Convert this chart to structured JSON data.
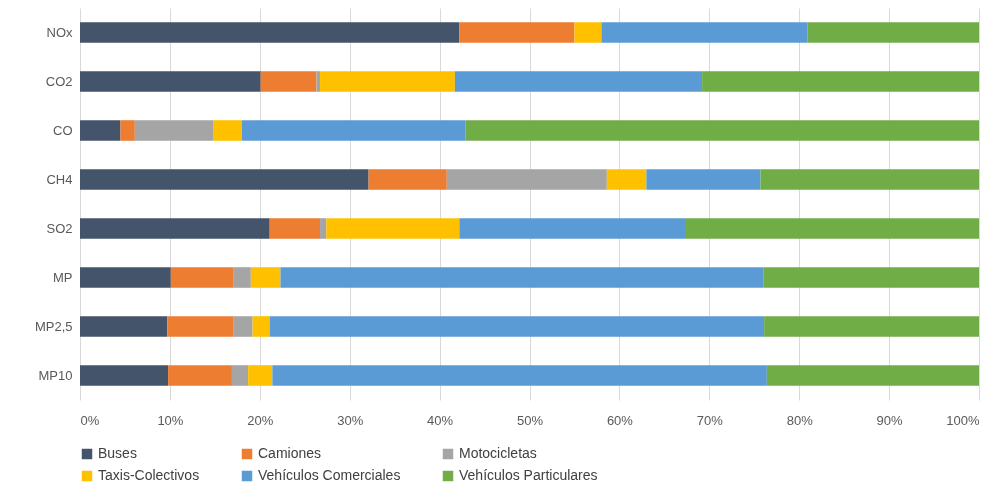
{
  "chart_data": {
    "type": "bar",
    "orientation": "horizontal",
    "stacked": true,
    "categories": [
      "NOx",
      "CO2",
      "CO",
      "CH4",
      "SO2",
      "MP",
      "MP2,5",
      "MP10"
    ],
    "series": [
      {
        "name": "Buses",
        "color": "#44546a",
        "values": [
          42.2,
          20.1,
          4.5,
          32.1,
          21.1,
          10.1,
          9.7,
          9.8
        ]
      },
      {
        "name": "Camiones",
        "color": "#ed7d31",
        "values": [
          12.8,
          6.2,
          1.6,
          8.7,
          5.6,
          7.0,
          7.4,
          7.1
        ]
      },
      {
        "name": "Motocicletas",
        "color": "#a5a5a5",
        "values": [
          0,
          0.4,
          8.7,
          17.8,
          0.7,
          1.9,
          2.1,
          1.8
        ]
      },
      {
        "name": "Taxis-Colectivos",
        "color": "#ffc000",
        "values": [
          3.0,
          15.0,
          3.2,
          4.4,
          14.8,
          3.3,
          1.9,
          2.7
        ]
      },
      {
        "name": "Vehículos Comerciales",
        "color": "#5b9bd5",
        "values": [
          22.9,
          27.5,
          24.9,
          12.7,
          25.1,
          53.7,
          55.0,
          55.0
        ]
      },
      {
        "name": "Vehículos Particulares",
        "color": "#70ad47",
        "values": [
          19.1,
          30.8,
          57.1,
          24.3,
          32.7,
          24.0,
          23.9,
          23.6
        ]
      }
    ],
    "xlim": [
      0,
      100
    ],
    "xticks": [
      {
        "value": 0,
        "label": "0%"
      },
      {
        "value": 10,
        "label": "10%"
      },
      {
        "value": 20,
        "label": "20%"
      },
      {
        "value": 30,
        "label": "30%"
      },
      {
        "value": 40,
        "label": "40%"
      },
      {
        "value": 50,
        "label": "50%"
      },
      {
        "value": 60,
        "label": "60%"
      },
      {
        "value": 70,
        "label": "70%"
      },
      {
        "value": 80,
        "label": "80%"
      },
      {
        "value": 90,
        "label": "90%"
      },
      {
        "value": 100,
        "label": "100%"
      }
    ],
    "grid": "x",
    "legend": "bottom"
  }
}
